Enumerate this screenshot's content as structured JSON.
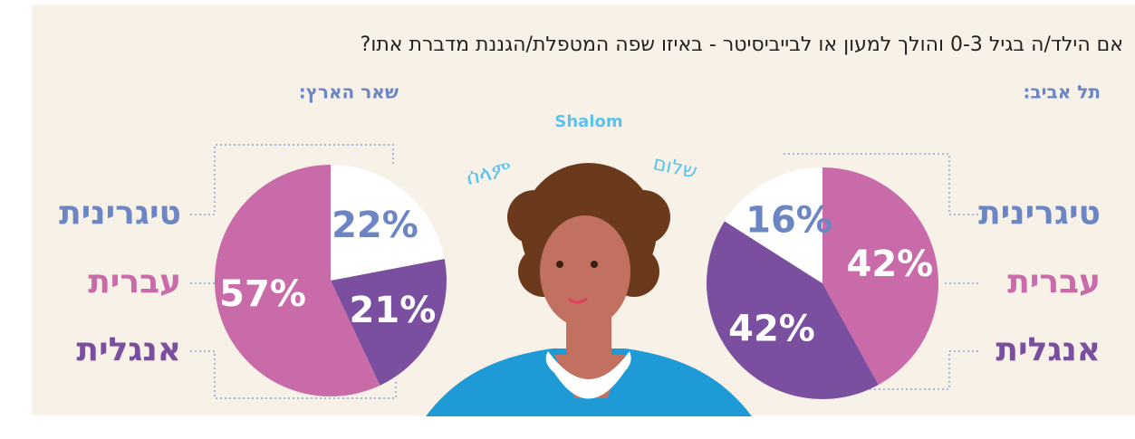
{
  "title": "אם הילד/ה בגיל 0-3 והולך למעון או לבייביסיטר - באיזו שפה המטפלת/הגננת מדברת אתו?",
  "greetings": [
    "Shalom",
    "שלום",
    "ሰላም"
  ],
  "chart_data": [
    {
      "type": "pie",
      "title": "תל אביב:",
      "categories": [
        "טיגרינית",
        "עברית",
        "אנגלית"
      ],
      "values": [
        16,
        42,
        42
      ],
      "value_labels": [
        "16%",
        "42%",
        "42%"
      ],
      "colors": [
        "#ffffff",
        "#c96aa9",
        "#7b4fa0"
      ],
      "label_colors": [
        "#6c86c4",
        "#c96aa9",
        "#7b4fa0"
      ]
    },
    {
      "type": "pie",
      "title": "שאר הארץ:",
      "categories": [
        "טיגרינית",
        "עברית",
        "אנגלית"
      ],
      "values": [
        22,
        57,
        21
      ],
      "value_labels": [
        "22%",
        "57%",
        "21%"
      ],
      "colors": [
        "#ffffff",
        "#c96aa9",
        "#7b4fa0"
      ],
      "label_colors": [
        "#6c86c4",
        "#c96aa9",
        "#7b4fa0"
      ]
    }
  ]
}
